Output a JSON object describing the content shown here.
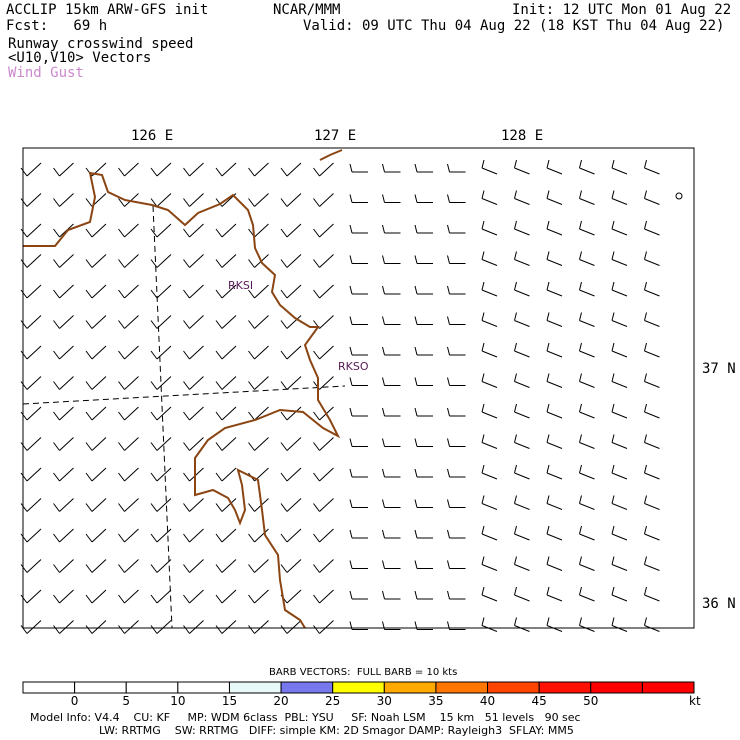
{
  "header": {
    "title": "ACCLIP 15km ARW-GFS init",
    "forecast": "Fcst:   69 h",
    "org": "NCAR/MMM",
    "init": "Init: 12 UTC Mon 01 Aug 22",
    "valid": "Valid: 09 UTC Thu 04 Aug 22 (18 KST Thu 04 Aug 22)",
    "field1": "Runway crosswind speed",
    "field2": "<U10,V10> Vectors",
    "field3": "Wind Gust"
  },
  "colors": {
    "coast": "#8b4513",
    "gust_label": "#cc88cc",
    "station": "#551a55"
  },
  "map": {
    "lon_labels": [
      "126 E",
      "127 E",
      "128 E"
    ],
    "lat_labels": [
      "37 N",
      "36 N"
    ],
    "stations": [
      "RKSI",
      "RKSO"
    ]
  },
  "colorbar": {
    "caption": "BARB VECTORS:  FULL BARB = 10 kts",
    "unit": "kt",
    "ticks": [
      "0",
      "5",
      "10",
      "15",
      "20",
      "25",
      "30",
      "35",
      "40",
      "45",
      "50"
    ],
    "bins": [
      {
        "range": "<0",
        "color": "#ffffff"
      },
      {
        "range": "0-5",
        "color": "#ffffff"
      },
      {
        "range": "5-10",
        "color": "#ffffff"
      },
      {
        "range": "10-15",
        "color": "#ffffff"
      },
      {
        "range": "15-20",
        "color": "#e8f8f8"
      },
      {
        "range": "20-25",
        "color": "#7777ee"
      },
      {
        "range": "25-30",
        "color": "#ffff00"
      },
      {
        "range": "30-35",
        "color": "#ffaa00"
      },
      {
        "range": "35-40",
        "color": "#ff7700"
      },
      {
        "range": "40-45",
        "color": "#ff4400"
      },
      {
        "range": "45-50",
        "color": "#ff1100"
      },
      {
        "range": "50-55",
        "color": "#ff0000"
      },
      {
        "range": ">55",
        "color": "#ff0000"
      }
    ]
  },
  "footer": {
    "line1": "Model Info: V4.4    CU: KF     MP: WDM 6class  PBL: YSU     SF: Noah LSM    15 km   51 levels   90 sec",
    "line2": "LW: RRTMG    SW: RRTMG   DIFF: simple KM: 2D Smagor DAMP: Rayleigh3  SFLAY: MM5"
  }
}
